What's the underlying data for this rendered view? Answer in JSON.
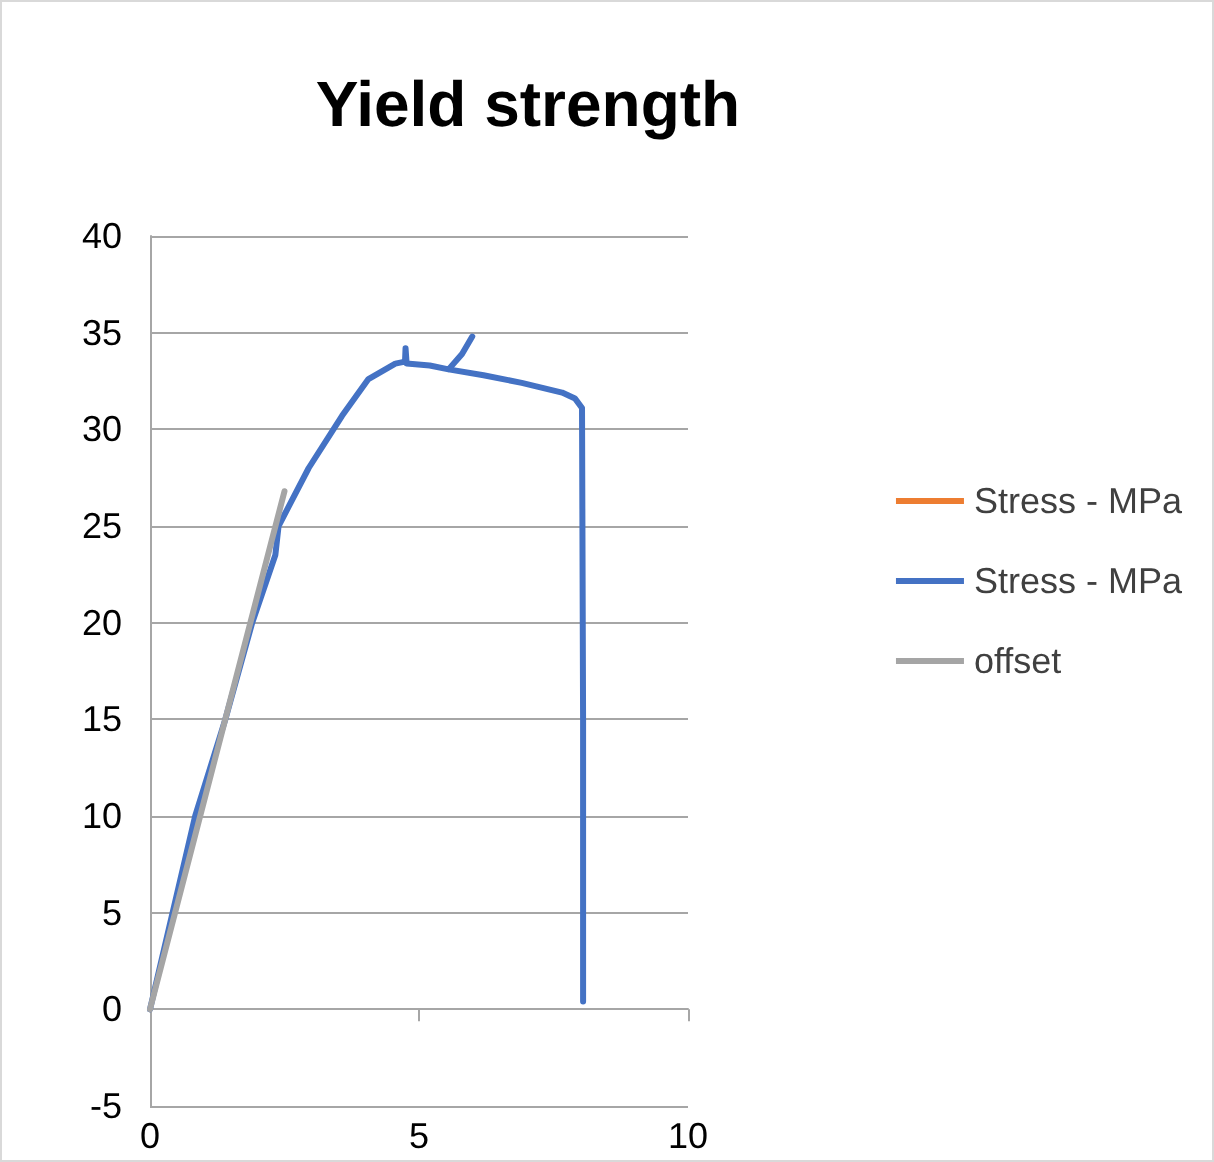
{
  "chart_data": {
    "type": "line",
    "title": "Yield strength",
    "xlim": [
      0,
      10
    ],
    "xticks": [
      0,
      5,
      10
    ],
    "ylim": [
      -5,
      40
    ],
    "yticks": [
      -5,
      0,
      5,
      10,
      15,
      20,
      25,
      30,
      35,
      40
    ],
    "grid": "y",
    "legend": "right",
    "marker": "none",
    "line_style": "solid",
    "series": [
      {
        "name": "Stress - MPa",
        "color": "#ed7d31"
      },
      {
        "name": "Stress - MPa",
        "color": "#4472c4",
        "x": [
          0,
          0.84,
          1.4,
          1.9,
          2.33,
          2.39,
          2.95,
          3.57,
          4.06,
          4.56,
          4.74,
          4.75,
          4.77,
          5.2,
          5.55,
          5.8,
          5.99,
          5.8,
          5.55,
          6.2,
          6.91,
          7.66,
          7.9,
          8.03,
          8.05,
          8.05
        ],
        "values": [
          0,
          10,
          15,
          20,
          23.5,
          25,
          28,
          30.7,
          32.6,
          33.4,
          33.5,
          34.2,
          33.4,
          33.3,
          33.1,
          33.9,
          34.8,
          33.9,
          33.1,
          32.8,
          32.4,
          31.9,
          31.6,
          31.1,
          15,
          0.4
        ]
      },
      {
        "name": "offset",
        "color": "#a5a5a5",
        "x": [
          0,
          2.5
        ],
        "values": [
          0,
          26.8
        ]
      }
    ]
  }
}
